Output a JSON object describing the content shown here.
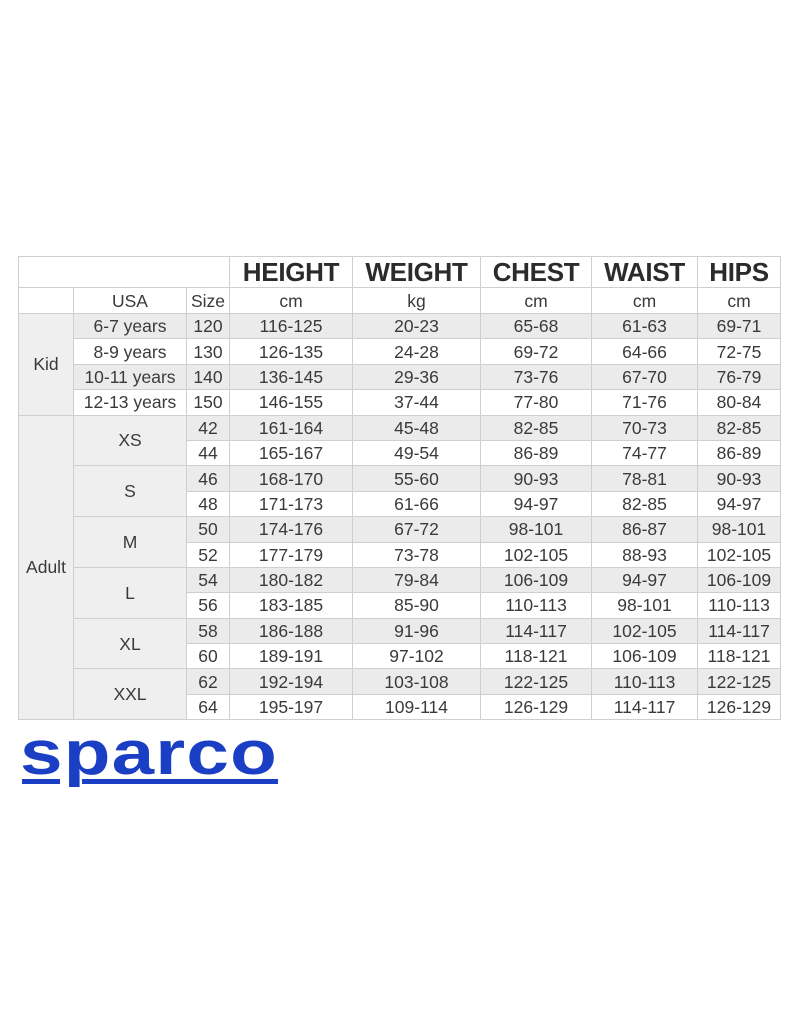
{
  "table": {
    "headers": [
      "HEIGHT",
      "WEIGHT",
      "CHEST",
      "WAIST",
      "HIPS"
    ],
    "units_row": {
      "usa": "USA",
      "size": "Size",
      "units": [
        "cm",
        "kg",
        "cm",
        "cm",
        "cm"
      ]
    },
    "groups": [
      {
        "label": "Kid",
        "subgroups": [
          {
            "label": null,
            "rows": [
              {
                "usa": "6-7 years",
                "size": "120",
                "values": [
                  "116-125",
                  "20-23",
                  "65-68",
                  "61-63",
                  "69-71"
                ]
              },
              {
                "usa": "8-9 years",
                "size": "130",
                "values": [
                  "126-135",
                  "24-28",
                  "69-72",
                  "64-66",
                  "72-75"
                ]
              },
              {
                "usa": "10-11 years",
                "size": "140",
                "values": [
                  "136-145",
                  "29-36",
                  "73-76",
                  "67-70",
                  "76-79"
                ]
              },
              {
                "usa": "12-13 years",
                "size": "150",
                "values": [
                  "146-155",
                  "37-44",
                  "77-80",
                  "71-76",
                  "80-84"
                ]
              }
            ]
          }
        ]
      },
      {
        "label": "Adult",
        "subgroups": [
          {
            "label": "XS",
            "rows": [
              {
                "size": "42",
                "values": [
                  "161-164",
                  "45-48",
                  "82-85",
                  "70-73",
                  "82-85"
                ]
              },
              {
                "size": "44",
                "values": [
                  "165-167",
                  "49-54",
                  "86-89",
                  "74-77",
                  "86-89"
                ]
              }
            ]
          },
          {
            "label": "S",
            "rows": [
              {
                "size": "46",
                "values": [
                  "168-170",
                  "55-60",
                  "90-93",
                  "78-81",
                  "90-93"
                ]
              },
              {
                "size": "48",
                "values": [
                  "171-173",
                  "61-66",
                  "94-97",
                  "82-85",
                  "94-97"
                ]
              }
            ]
          },
          {
            "label": "M",
            "rows": [
              {
                "size": "50",
                "values": [
                  "174-176",
                  "67-72",
                  "98-101",
                  "86-87",
                  "98-101"
                ]
              },
              {
                "size": "52",
                "values": [
                  "177-179",
                  "73-78",
                  "102-105",
                  "88-93",
                  "102-105"
                ]
              }
            ]
          },
          {
            "label": "L",
            "rows": [
              {
                "size": "54",
                "values": [
                  "180-182",
                  "79-84",
                  "106-109",
                  "94-97",
                  "106-109"
                ]
              },
              {
                "size": "56",
                "values": [
                  "183-185",
                  "85-90",
                  "110-113",
                  "98-101",
                  "110-113"
                ]
              }
            ]
          },
          {
            "label": "XL",
            "rows": [
              {
                "size": "58",
                "values": [
                  "186-188",
                  "91-96",
                  "114-117",
                  "102-105",
                  "114-117"
                ]
              },
              {
                "size": "60",
                "values": [
                  "189-191",
                  "97-102",
                  "118-121",
                  "106-109",
                  "118-121"
                ]
              }
            ]
          },
          {
            "label": "XXL",
            "rows": [
              {
                "size": "62",
                "values": [
                  "192-194",
                  "103-108",
                  "122-125",
                  "110-113",
                  "122-125"
                ]
              },
              {
                "size": "64",
                "values": [
                  "195-197",
                  "109-114",
                  "126-129",
                  "114-117",
                  "126-129"
                ]
              }
            ]
          }
        ]
      }
    ]
  },
  "logo": {
    "text": "sparco",
    "color": "#1b3fc4"
  }
}
